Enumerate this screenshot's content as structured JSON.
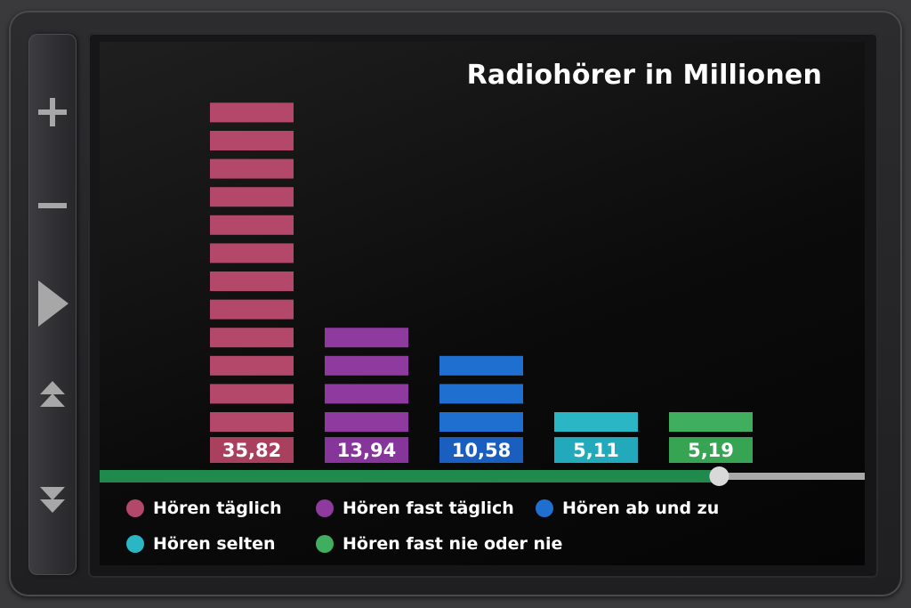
{
  "chart_data": {
    "type": "bar",
    "title": "Radiohörer in Millionen",
    "categories": [
      "Hören täglich",
      "Hören fast täglich",
      "Hören ab und zu",
      "Hören selten",
      "Hören fast nie oder nie"
    ],
    "values": [
      35.82,
      13.94,
      10.58,
      5.11,
      5.19
    ],
    "value_labels": [
      "35,82",
      "13,94",
      "10,58",
      "5,11",
      "5,19"
    ],
    "segments": [
      12,
      4,
      3,
      1,
      1
    ],
    "colors": [
      "#b4486a",
      "#8e3a9e",
      "#1f6fd0",
      "#2bb6c6",
      "#3fae5e"
    ],
    "label_colors": [
      "#a9405e",
      "#86359a",
      "#1a5fc0",
      "#22a9bb",
      "#37a454"
    ],
    "legend_placement": "bottom",
    "grid": false
  },
  "progress": {
    "value": 0.84,
    "fill_color": "#1f8a4c",
    "track_color": "#a9a9a9"
  },
  "controls": {
    "volume_up_icon": "plus-icon",
    "volume_down_icon": "minus-icon",
    "play_icon": "play-icon",
    "up_icon": "double-chevron-up-icon",
    "down_icon": "double-chevron-down-icon"
  }
}
